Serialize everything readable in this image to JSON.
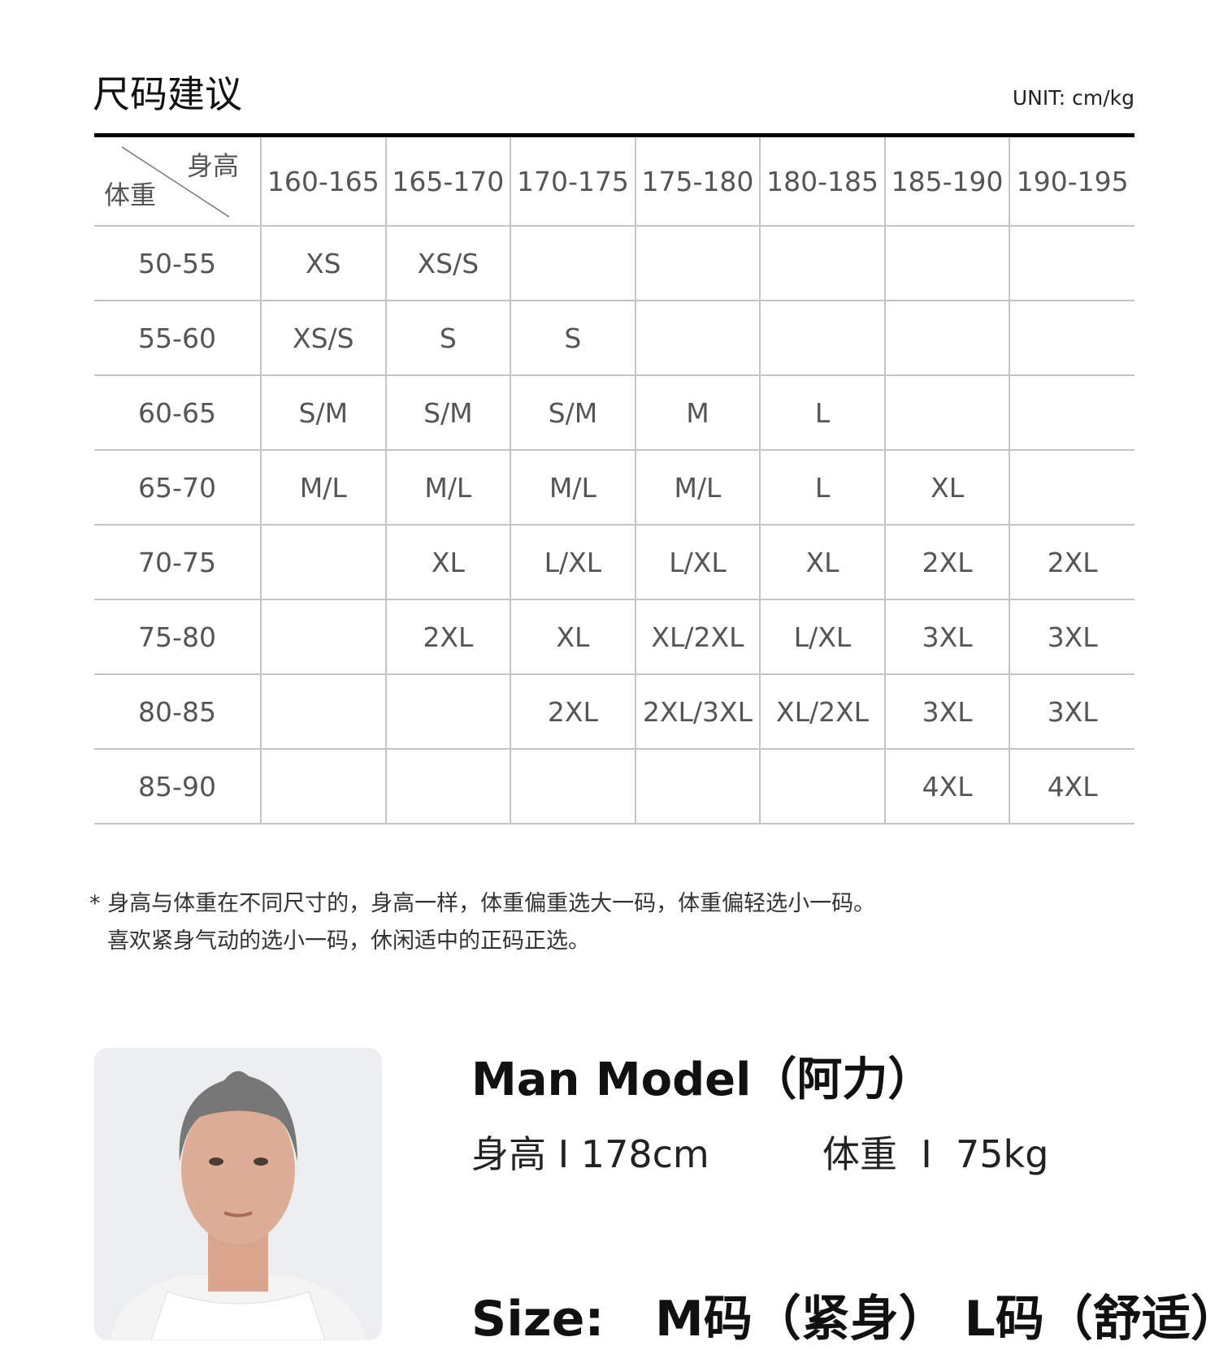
{
  "title": "尺码建议",
  "unit": "UNIT: cm/kg",
  "table": {
    "corner_height_label": "身高",
    "corner_weight_label": "体重",
    "heights": [
      "160-165",
      "165-170",
      "170-175",
      "175-180",
      "180-185",
      "185-190",
      "190-195"
    ],
    "rows": [
      {
        "weight": "50-55",
        "sizes": [
          "XS",
          "XS/S",
          "",
          "",
          "",
          "",
          ""
        ]
      },
      {
        "weight": "55-60",
        "sizes": [
          "XS/S",
          "S",
          "S",
          "",
          "",
          "",
          ""
        ]
      },
      {
        "weight": "60-65",
        "sizes": [
          "S/M",
          "S/M",
          "S/M",
          "M",
          "L",
          "",
          ""
        ]
      },
      {
        "weight": "65-70",
        "sizes": [
          "M/L",
          "M/L",
          "M/L",
          "M/L",
          "L",
          "XL",
          ""
        ]
      },
      {
        "weight": "70-75",
        "sizes": [
          "",
          "XL",
          "L/XL",
          "L/XL",
          "XL",
          "2XL",
          "2XL"
        ]
      },
      {
        "weight": "75-80",
        "sizes": [
          "",
          "2XL",
          "XL",
          "XL/2XL",
          "L/XL",
          "3XL",
          "3XL"
        ]
      },
      {
        "weight": "80-85",
        "sizes": [
          "",
          "",
          "2XL",
          "2XL/3XL",
          "XL/2XL",
          "3XL",
          "3XL"
        ]
      },
      {
        "weight": "85-90",
        "sizes": [
          "",
          "",
          "",
          "",
          "",
          "4XL",
          "4XL"
        ]
      }
    ]
  },
  "notes": {
    "line1": "* 身高与体重在不同尺寸的，身高一样，体重偏重选大一码，体重偏轻选小一码。",
    "line2": "喜欢紧身气动的选小一码，休闲适中的正码正选。"
  },
  "model": {
    "name": "Man Model（阿力）",
    "height": "身高 I 178cm",
    "weight": "体重  I  75kg",
    "size": "Size:   M码（紧身） L码（舒适）"
  }
}
